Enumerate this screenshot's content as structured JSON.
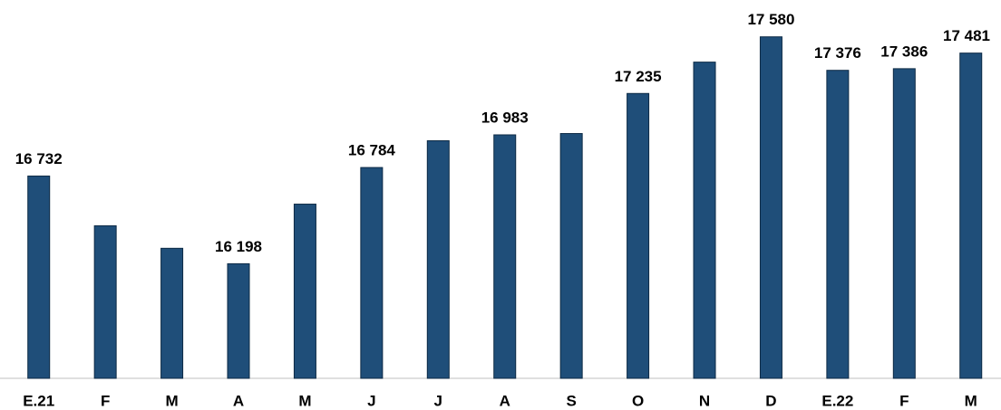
{
  "chart_data": {
    "type": "bar",
    "categories": [
      "E.21",
      "F",
      "M",
      "A",
      "M",
      "J",
      "J",
      "A",
      "S",
      "O",
      "N",
      "D",
      "E.22",
      "F",
      "M"
    ],
    "values": [
      16732,
      16429,
      16292,
      16198,
      16561,
      16784,
      16947,
      16983,
      16991,
      17235,
      17426,
      17580,
      17376,
      17386,
      17481
    ],
    "value_labels": [
      "16 732",
      null,
      null,
      "16 198",
      null,
      "16 784",
      null,
      "16 983",
      null,
      "17 235",
      null,
      "17 580",
      "17 376",
      "17 386",
      "17 481"
    ],
    "color": "#1f4e79",
    "ylim": [
      15500,
      17650
    ]
  }
}
